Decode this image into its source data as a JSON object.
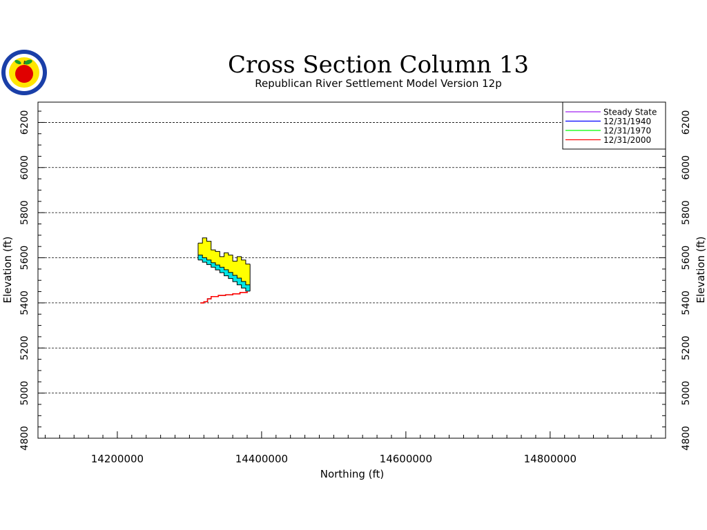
{
  "chart_data": {
    "type": "area",
    "title": "Cross Section Column 13",
    "subtitle": "Republican River Settlement Model Version 12p",
    "xlabel": "Northing (ft)",
    "ylabel": "Elevation (ft)",
    "xlim": [
      14090000,
      14960000
    ],
    "ylim": [
      4800,
      6290
    ],
    "x_ticks": [
      14200000,
      14400000,
      14600000,
      14800000
    ],
    "x_tick_labels": [
      "14200000",
      "14400000",
      "14600000",
      "14800000"
    ],
    "y_ticks": [
      4800,
      5000,
      5200,
      5400,
      5600,
      5800,
      6000,
      6200
    ],
    "y_tick_labels": [
      "4800",
      "5000",
      "5200",
      "5400",
      "5600",
      "5800",
      "6000",
      "6200"
    ],
    "grid": true,
    "legend_position": "top-right",
    "colors": {
      "fill_top": "#ffff00",
      "fill_middle": "#00e5e5",
      "steady_state": "#a020f0",
      "1940": "#0000ff",
      "1970": "#00ff00",
      "2000": "#ff0000"
    },
    "layers": {
      "x": [
        14315000,
        14321000,
        14327000,
        14333000,
        14339000,
        14345000,
        14351000,
        14357000,
        14363000,
        14369000,
        14375000,
        14381000
      ],
      "top_surface": [
        5665,
        5688,
        5673,
        5635,
        5628,
        5605,
        5622,
        5612,
        5585,
        5605,
        5590,
        5572
      ],
      "middle_surface": [
        5612,
        5600,
        5590,
        5578,
        5568,
        5558,
        5547,
        5535,
        5522,
        5510,
        5495,
        5480
      ],
      "middle_bottom": [
        5590,
        5580,
        5570,
        5558,
        5546,
        5534,
        5520,
        5508,
        5494,
        5480,
        5466,
        5452
      ]
    },
    "series": [
      {
        "name": "Steady State",
        "color": "#a020f0",
        "x": [
          14315000,
          14320000,
          14325000,
          14330000,
          14340000,
          14350000,
          14360000,
          14370000,
          14380000
        ],
        "values": [
          5400,
          5405,
          5418,
          5428,
          5433,
          5436,
          5440,
          5446,
          5452
        ]
      },
      {
        "name": "12/31/1940",
        "color": "#0000ff",
        "x": [
          14315000,
          14320000,
          14325000,
          14330000,
          14340000,
          14350000,
          14360000,
          14370000,
          14380000
        ],
        "values": [
          5400,
          5405,
          5418,
          5428,
          5433,
          5436,
          5440,
          5446,
          5452
        ]
      },
      {
        "name": "12/31/1970",
        "color": "#00ff00",
        "x": [
          14315000,
          14320000,
          14325000,
          14330000,
          14340000,
          14350000,
          14360000,
          14370000,
          14380000
        ],
        "values": [
          5400,
          5405,
          5418,
          5428,
          5433,
          5436,
          5440,
          5446,
          5452
        ]
      },
      {
        "name": "12/31/2000",
        "color": "#ff0000",
        "x": [
          14315000,
          14320000,
          14325000,
          14330000,
          14340000,
          14350000,
          14360000,
          14370000,
          14380000
        ],
        "values": [
          5400,
          5405,
          5418,
          5428,
          5433,
          5436,
          5440,
          5446,
          5452
        ]
      }
    ]
  },
  "logo": {
    "name": "seal-logo-icon",
    "colors": {
      "ring": "#1a3fa8",
      "inner": "#ffe600",
      "apple": "#e00000",
      "leaf": "#1a9e2a"
    }
  }
}
